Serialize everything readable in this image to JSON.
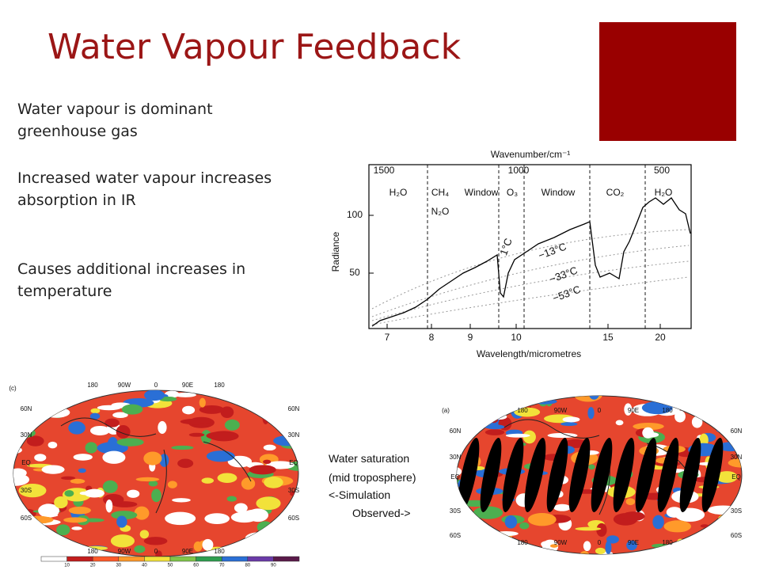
{
  "title": "Water Vapour Feedback",
  "bullets": [
    "Water vapour is dominant greenhouse gas",
    "Increased water vapour increases absorption in IR",
    "Causes additional increases in temperature"
  ],
  "spectrum": {
    "top_axis_label": "Wavenumber/cm⁻¹",
    "top_ticks": [
      "1500",
      "1000",
      "500"
    ],
    "y_label": "Radiance",
    "y_ticks": [
      "100",
      "50"
    ],
    "x_label": "Wavelength/micrometres",
    "x_ticks": [
      "7",
      "8",
      "9",
      "10",
      "15",
      "20"
    ],
    "bands": [
      "H₂O",
      "CH₄",
      "N₂O",
      "Window",
      "O₃",
      "Window",
      "CO₂",
      "H₂O"
    ],
    "temps": [
      "1°C",
      "−13°C",
      "−33°C",
      "−53°C"
    ]
  },
  "maps": {
    "left_label": "(c)",
    "right_label": "(a)",
    "lon_labels": [
      "180",
      "90W",
      "0",
      "90E",
      "180"
    ],
    "lat_labels": [
      "60N",
      "30N",
      "EQ",
      "30S",
      "60S"
    ],
    "colorbar_ticks": [
      "10",
      "20",
      "30",
      "40",
      "50",
      "60",
      "70",
      "80",
      "90"
    ]
  },
  "caption": [
    "Water saturation",
    "(mid troposphere)",
    "<-Simulation",
    "Observed->"
  ]
}
